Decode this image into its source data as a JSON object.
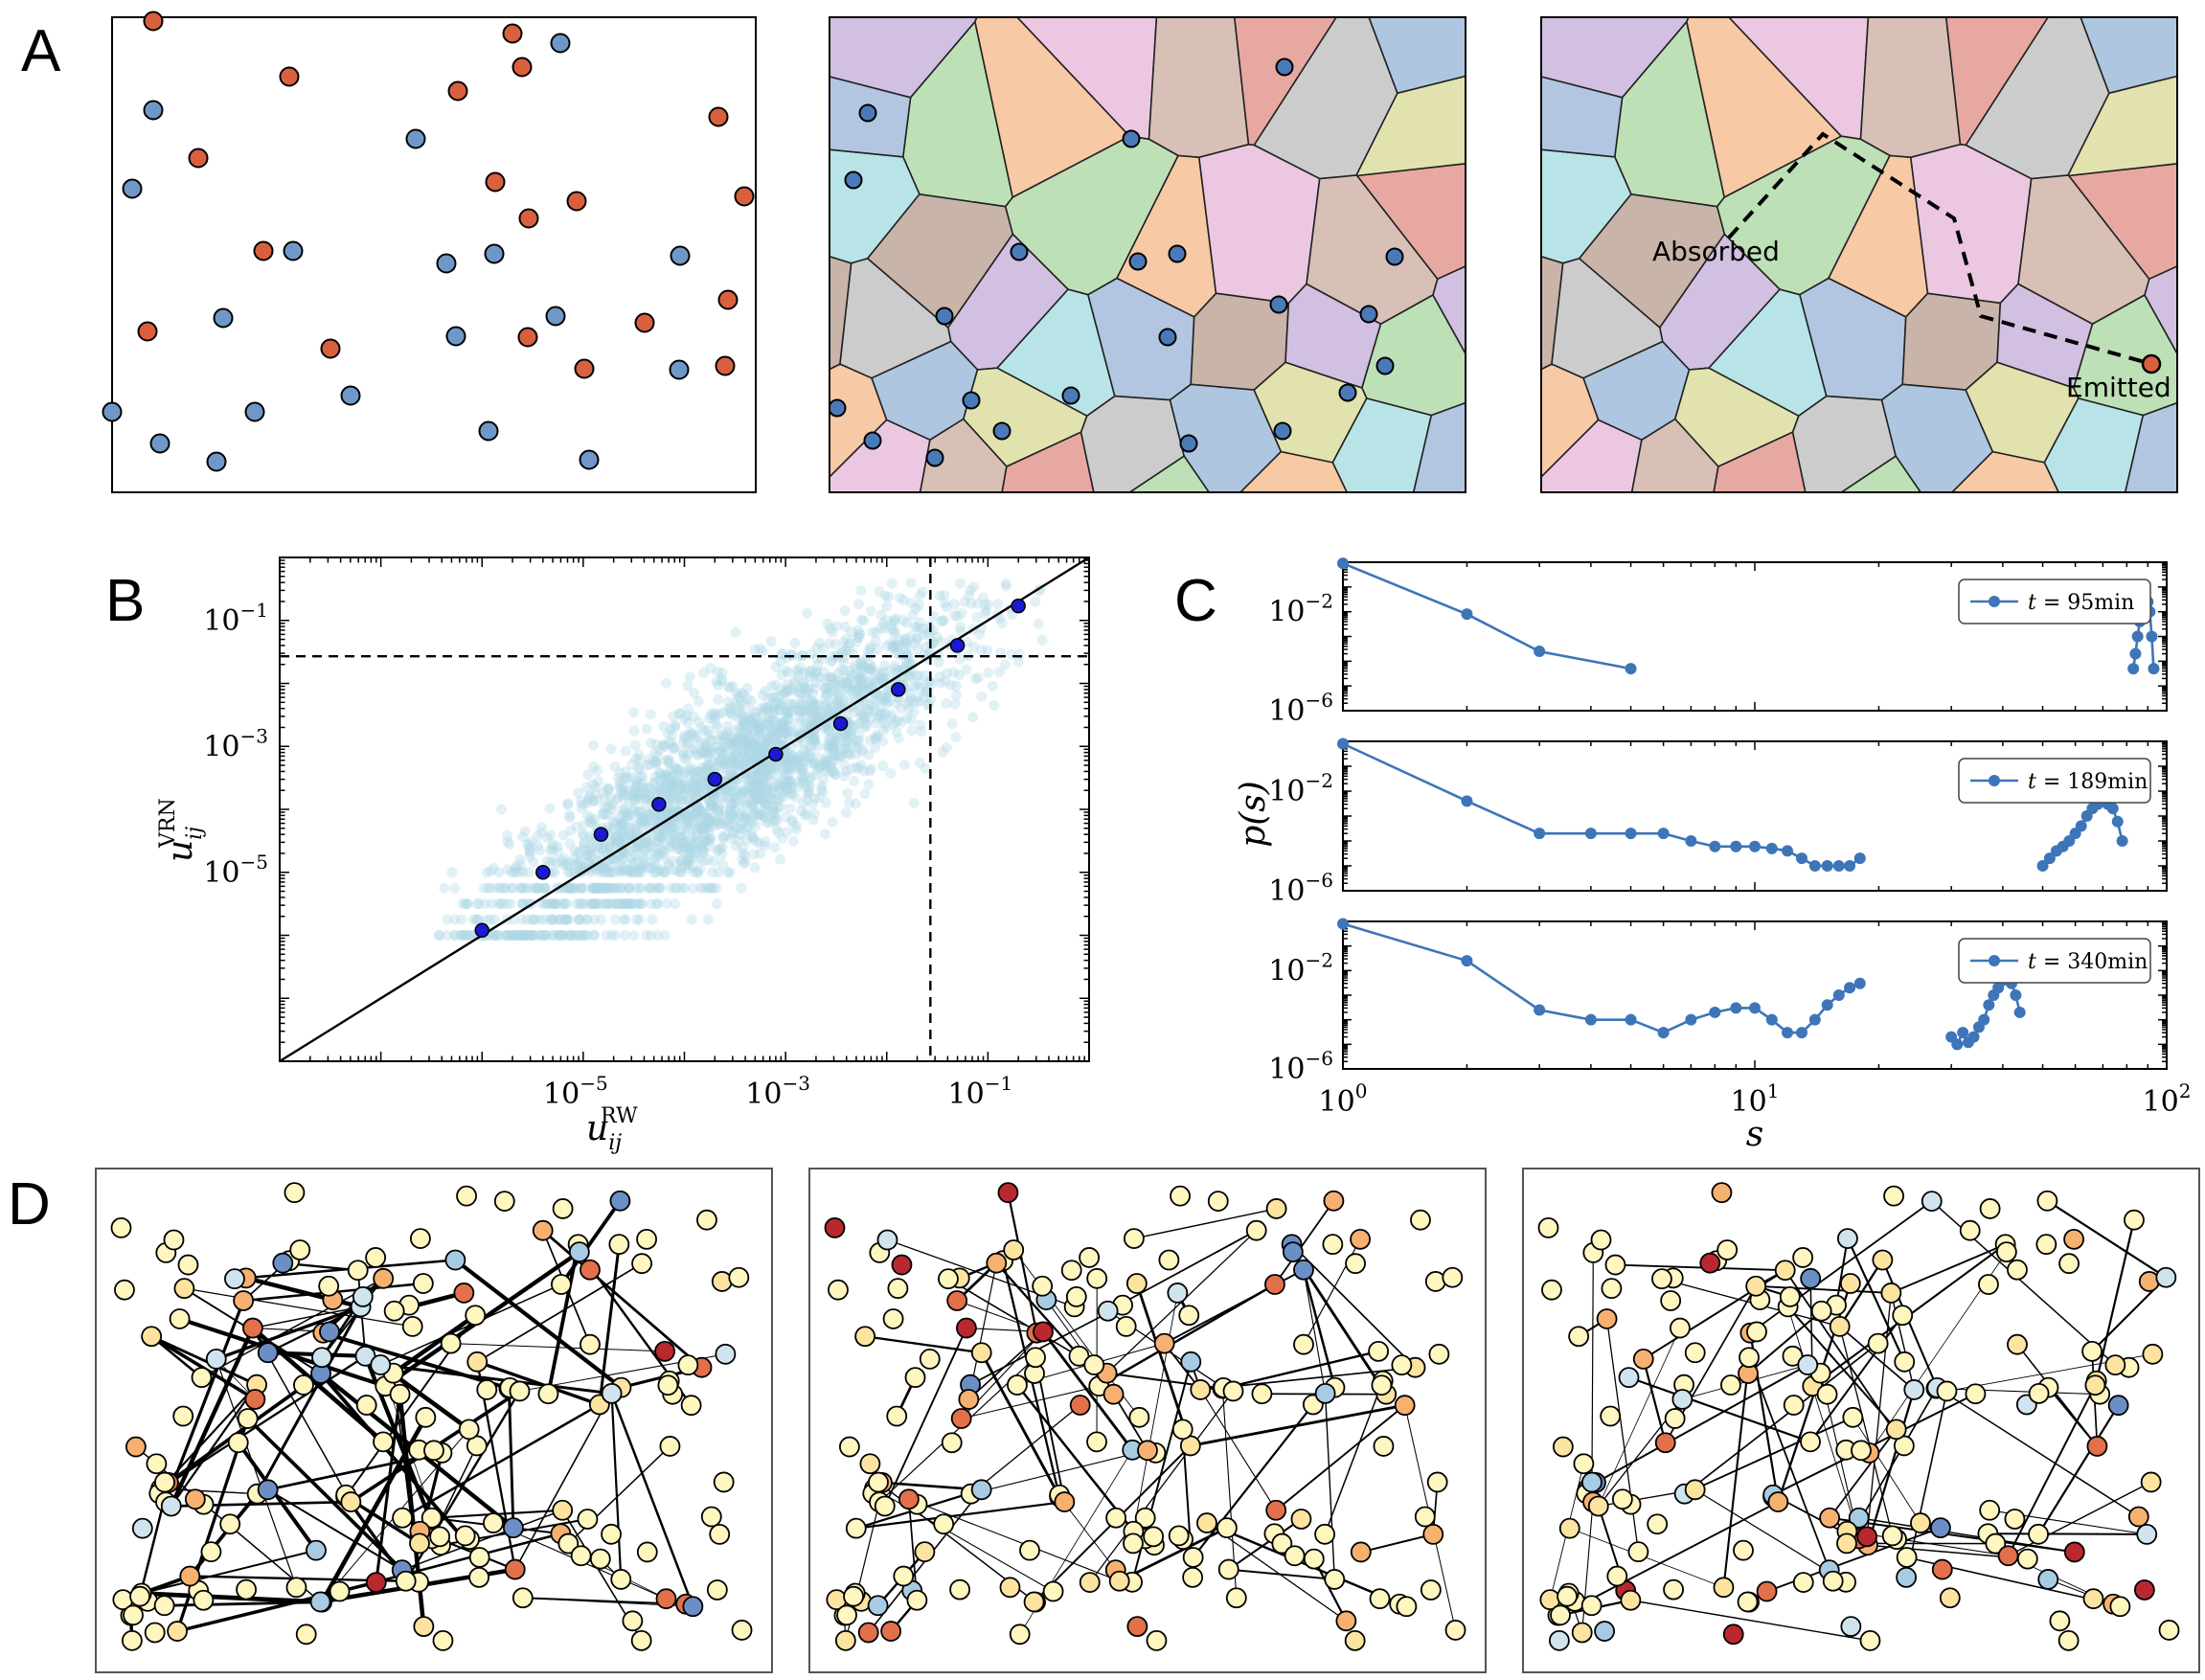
{
  "panels": {
    "a": {
      "letter": "A",
      "absorbed_label": "Absorbed",
      "emitted_label": "Emitted"
    },
    "b": {
      "letter": "B"
    },
    "c": {
      "letter": "C"
    },
    "d": {
      "letter": "D"
    }
  },
  "colors": {
    "blue_dot": "#6f98c8",
    "red_dot": "#d9603e",
    "line_blue": "#3d75b8",
    "scatter": "#add8e6",
    "binned": "#1a1ad6",
    "cells": [
      "#d1c0e2",
      "#bde0b6",
      "#f7c9a4",
      "#ebc7e2",
      "#d8c0b6",
      "#e8a8a2",
      "#cccccc",
      "#aec6e0",
      "#e2e2ae",
      "#b8e4e8",
      "#b2c6e2",
      "#c8b4a8"
    ],
    "nodes": [
      "#fff6c0",
      "#fde3a0",
      "#f6b070",
      "#e2704a",
      "#b8282e",
      "#cfe4ee",
      "#a8cbe4",
      "#6b8fc4"
    ]
  },
  "chart_data": [
    {
      "type": "scatter",
      "panel": "B",
      "xscale": "log",
      "yscale": "log",
      "xlabel": "u",
      "xlabel_sub": "ij",
      "xlabel_sup": "RW",
      "ylabel": "u",
      "ylabel_sub": "ij",
      "ylabel_sup": "VRN",
      "xlim": [
        1e-08,
        1.0
      ],
      "ylim": [
        1e-08,
        1.0
      ],
      "xticks": [
        {
          "base": "10",
          "exp": "−5",
          "v": 1e-05
        },
        {
          "base": "10",
          "exp": "−3",
          "v": 0.001
        },
        {
          "base": "10",
          "exp": "−1",
          "v": 0.1
        }
      ],
      "yticks": [
        {
          "base": "10",
          "exp": "−5",
          "v": 1e-05
        },
        {
          "base": "10",
          "exp": "−3",
          "v": 0.001
        },
        {
          "base": "10",
          "exp": "−1",
          "v": 0.1
        }
      ],
      "threshold_x": 0.027,
      "threshold_y": 0.027,
      "diagonal": "y = x",
      "binned_points": [
        [
          1e-06,
          1.2e-06
        ],
        [
          4e-06,
          1e-05
        ],
        [
          1.5e-05,
          4e-05
        ],
        [
          5.6e-05,
          0.00012
        ],
        [
          0.0002,
          0.0003
        ],
        [
          0.0008,
          0.00075
        ],
        [
          0.0035,
          0.0023
        ],
        [
          0.013,
          0.008
        ],
        [
          0.05,
          0.04
        ],
        [
          0.2,
          0.17
        ]
      ]
    },
    {
      "type": "line",
      "panel": "C",
      "xscale": "log",
      "yscale": "log",
      "xlabel": "s",
      "ylabel": "p(s)",
      "xlim": [
        1,
        100
      ],
      "ylim": [
        1e-06,
        1.0
      ],
      "xticks": [
        {
          "base": "10",
          "exp": "0",
          "v": 1
        },
        {
          "base": "10",
          "exp": "1",
          "v": 10
        },
        {
          "base": "10",
          "exp": "2",
          "v": 100
        }
      ],
      "yticks": [
        {
          "base": "10",
          "exp": "−6",
          "v": 1e-06
        },
        {
          "base": "10",
          "exp": "−2",
          "v": 0.01
        }
      ],
      "series": [
        {
          "name": "t = 95min",
          "legend_main": "t",
          "legend_rest": " = 95min",
          "segments": [
            [
              [
                1,
                0.9
              ],
              [
                2,
                0.008
              ],
              [
                3,
                0.00025
              ],
              [
                5,
                5e-05
              ]
            ],
            [
              [
                83,
                5e-05
              ],
              [
                84,
                0.0002
              ],
              [
                85,
                0.001
              ],
              [
                86,
                0.004
              ],
              [
                87,
                0.01
              ],
              [
                88,
                0.02
              ],
              [
                89,
                0.03
              ],
              [
                90,
                0.025
              ],
              [
                91,
                0.01
              ],
              [
                92,
                0.001
              ],
              [
                93,
                5e-05
              ]
            ]
          ]
        },
        {
          "name": "t = 189min",
          "legend_main": "t",
          "legend_rest": " = 189min",
          "segments": [
            [
              [
                1,
                0.8
              ],
              [
                2,
                0.004
              ],
              [
                3,
                0.0002
              ],
              [
                4,
                0.0002
              ],
              [
                5,
                0.0002
              ],
              [
                6,
                0.0002
              ],
              [
                7,
                0.0001
              ],
              [
                8,
                6e-05
              ],
              [
                9,
                6e-05
              ],
              [
                10,
                6e-05
              ],
              [
                11,
                5e-05
              ],
              [
                12,
                4e-05
              ],
              [
                13,
                2e-05
              ],
              [
                14,
                1e-05
              ],
              [
                15,
                1e-05
              ],
              [
                16,
                1e-05
              ],
              [
                17,
                1e-05
              ],
              [
                18,
                2e-05
              ]
            ],
            [
              [
                50,
                1e-05
              ],
              [
                52,
                2e-05
              ],
              [
                54,
                4e-05
              ],
              [
                56,
                6e-05
              ],
              [
                58,
                0.0001
              ],
              [
                60,
                0.0002
              ],
              [
                62,
                0.0004
              ],
              [
                64,
                0.001
              ],
              [
                66,
                0.002
              ],
              [
                68,
                0.003
              ],
              [
                70,
                0.004
              ],
              [
                72,
                0.003
              ],
              [
                74,
                0.002
              ],
              [
                76,
                0.0006
              ],
              [
                78,
                0.0001
              ]
            ]
          ]
        },
        {
          "name": "t = 340min",
          "legend_main": "t",
          "legend_rest": " = 340min",
          "segments": [
            [
              [
                1,
                0.8
              ],
              [
                2,
                0.025
              ],
              [
                3,
                0.00025
              ],
              [
                4,
                0.0001
              ],
              [
                5,
                0.0001
              ],
              [
                6,
                3e-05
              ],
              [
                7,
                0.0001
              ],
              [
                8,
                0.0002
              ],
              [
                9,
                0.0003
              ],
              [
                10,
                0.0003
              ],
              [
                11,
                0.0001
              ],
              [
                12,
                3e-05
              ],
              [
                13,
                3e-05
              ],
              [
                14,
                0.0001
              ],
              [
                15,
                0.0004
              ],
              [
                16,
                0.001
              ],
              [
                17,
                0.002
              ],
              [
                18,
                0.003
              ]
            ],
            [
              [
                30,
                2e-05
              ],
              [
                31,
                1e-05
              ],
              [
                32,
                3e-05
              ],
              [
                33,
                1.2e-05
              ],
              [
                34,
                2e-05
              ],
              [
                35,
                5e-05
              ],
              [
                36,
                0.0001
              ],
              [
                37,
                0.0004
              ],
              [
                38,
                0.001
              ],
              [
                39,
                0.002
              ],
              [
                40,
                0.004
              ],
              [
                41,
                0.005
              ],
              [
                42,
                0.003
              ],
              [
                43,
                0.001
              ],
              [
                44,
                0.0002
              ]
            ]
          ]
        }
      ]
    }
  ]
}
